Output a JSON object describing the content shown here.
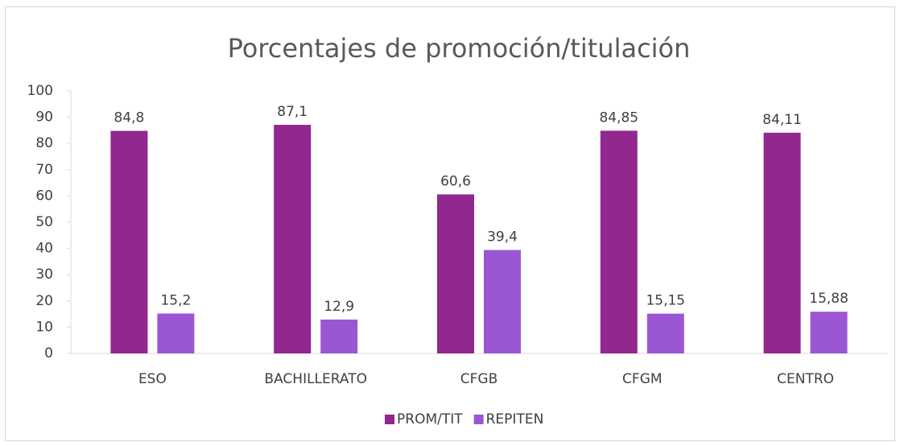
{
  "chart_data": {
    "type": "bar",
    "title": "Porcentajes de promoción/titulación",
    "categories": [
      "ESO",
      "BACHILLERATO",
      "CFGB",
      "CFGM",
      "CENTRO"
    ],
    "series": [
      {
        "name": "PROM/TIT",
        "color": "#92278f",
        "values": [
          84.8,
          87.1,
          60.6,
          84.85,
          84.11
        ],
        "value_labels": [
          "84,8",
          "87,1",
          "60,6",
          "84,85",
          "84,11"
        ]
      },
      {
        "name": "REPITEN",
        "color": "#9b57d3",
        "values": [
          15.2,
          12.9,
          39.4,
          15.15,
          15.88
        ],
        "value_labels": [
          "15,2",
          "12,9",
          "39,4",
          "15,15",
          "15,88"
        ]
      }
    ],
    "ylim": [
      0,
      100
    ],
    "yticks": [
      0,
      10,
      20,
      30,
      40,
      50,
      60,
      70,
      80,
      90,
      100
    ],
    "grid": false,
    "legend": "bottom"
  }
}
